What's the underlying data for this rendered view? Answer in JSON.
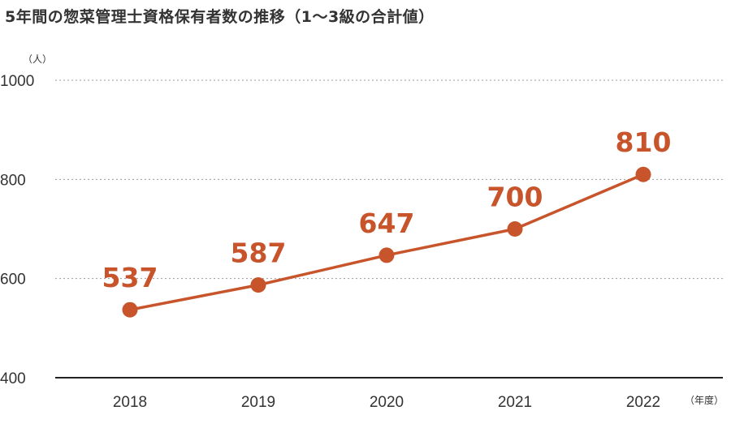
{
  "title": "5年間の惣菜管理士資格保有者数の推移（1～3級の合計値）",
  "colors": {
    "series": "#c7542a",
    "text": "#333333",
    "grid": "#999999",
    "axis": "#222222"
  },
  "chart_data": {
    "type": "line",
    "title": "5年間の惣菜管理士資格保有者数の推移（1～3級の合計値）",
    "x": [
      "2018",
      "2019",
      "2020",
      "2021",
      "2022"
    ],
    "series": [
      {
        "values": [
          537,
          587,
          647,
          700,
          810
        ],
        "data_labels": [
          "537",
          "587",
          "647",
          "700",
          "810"
        ]
      }
    ],
    "y_axis_unit": "（人）",
    "x_axis_unit": "（年度）",
    "y_ticks": [
      "400",
      "600",
      "800",
      "1000"
    ],
    "ylim": [
      400,
      1000
    ],
    "grid": "horizontal dotted",
    "legend": "none"
  }
}
